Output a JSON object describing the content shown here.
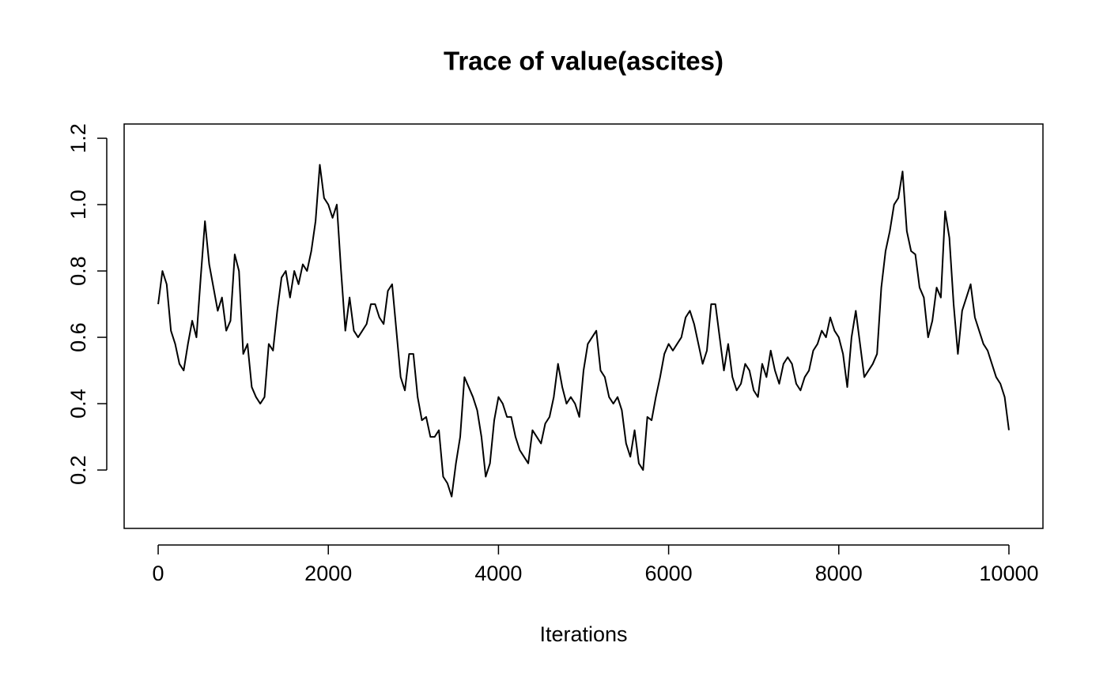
{
  "chart_data": {
    "type": "line",
    "title": "Trace of value(ascites)",
    "xlabel": "Iterations",
    "color": "#000000",
    "xlim": [
      -400,
      10400
    ],
    "ylim": [
      0.024,
      1.243
    ],
    "xticks": [
      0,
      2000,
      4000,
      6000,
      8000,
      10000
    ],
    "yticks": [
      0.2,
      0.4,
      0.6,
      0.8,
      {
        "value": 1,
        "label": "1.0"
      },
      1.2
    ],
    "x": [
      0,
      50,
      100,
      150,
      200,
      250,
      300,
      350,
      400,
      450,
      500,
      550,
      600,
      650,
      700,
      750,
      800,
      850,
      900,
      950,
      1000,
      1050,
      1100,
      1150,
      1200,
      1250,
      1300,
      1350,
      1400,
      1450,
      1500,
      1550,
      1600,
      1650,
      1700,
      1750,
      1800,
      1850,
      1900,
      1950,
      2000,
      2050,
      2100,
      2150,
      2200,
      2250,
      2300,
      2350,
      2400,
      2450,
      2500,
      2550,
      2600,
      2650,
      2700,
      2750,
      2800,
      2850,
      2900,
      2950,
      3000,
      3050,
      3100,
      3150,
      3200,
      3250,
      3300,
      3350,
      3400,
      3450,
      3500,
      3550,
      3600,
      3650,
      3700,
      3750,
      3800,
      3850,
      3900,
      3950,
      4000,
      4050,
      4100,
      4150,
      4200,
      4250,
      4300,
      4350,
      4400,
      4450,
      4500,
      4550,
      4600,
      4650,
      4700,
      4750,
      4800,
      4850,
      4900,
      4950,
      5000,
      5050,
      5100,
      5150,
      5200,
      5250,
      5300,
      5350,
      5400,
      5450,
      5500,
      5550,
      5600,
      5650,
      5700,
      5750,
      5800,
      5850,
      5900,
      5950,
      6000,
      6050,
      6100,
      6150,
      6200,
      6250,
      6300,
      6350,
      6400,
      6450,
      6500,
      6550,
      6600,
      6650,
      6700,
      6750,
      6800,
      6850,
      6900,
      6950,
      7000,
      7050,
      7100,
      7150,
      7200,
      7250,
      7300,
      7350,
      7400,
      7450,
      7500,
      7550,
      7600,
      7650,
      7700,
      7750,
      7800,
      7850,
      7900,
      7950,
      8000,
      8050,
      8100,
      8150,
      8200,
      8250,
      8300,
      8350,
      8400,
      8450,
      8500,
      8550,
      8600,
      8650,
      8700,
      8750,
      8800,
      8850,
      8900,
      8950,
      9000,
      9050,
      9100,
      9150,
      9200,
      9250,
      9300,
      9350,
      9400,
      9450,
      9500,
      9550,
      9600,
      9650,
      9700,
      9750,
      9800,
      9850,
      9900,
      9950,
      10000
    ],
    "values": [
      0.7,
      0.8,
      0.76,
      0.62,
      0.58,
      0.52,
      0.5,
      0.58,
      0.65,
      0.6,
      0.78,
      0.95,
      0.82,
      0.75,
      0.68,
      0.72,
      0.62,
      0.65,
      0.85,
      0.8,
      0.55,
      0.58,
      0.45,
      0.42,
      0.4,
      0.42,
      0.58,
      0.56,
      0.68,
      0.78,
      0.8,
      0.72,
      0.8,
      0.76,
      0.82,
      0.8,
      0.86,
      0.95,
      1.12,
      1.02,
      1.0,
      0.96,
      1.0,
      0.8,
      0.62,
      0.72,
      0.62,
      0.6,
      0.62,
      0.64,
      0.7,
      0.7,
      0.66,
      0.64,
      0.74,
      0.76,
      0.62,
      0.48,
      0.44,
      0.55,
      0.55,
      0.42,
      0.35,
      0.36,
      0.3,
      0.3,
      0.32,
      0.18,
      0.16,
      0.12,
      0.22,
      0.3,
      0.48,
      0.45,
      0.42,
      0.38,
      0.3,
      0.18,
      0.22,
      0.35,
      0.42,
      0.4,
      0.36,
      0.36,
      0.3,
      0.26,
      0.24,
      0.22,
      0.32,
      0.3,
      0.28,
      0.34,
      0.36,
      0.42,
      0.52,
      0.45,
      0.4,
      0.42,
      0.4,
      0.36,
      0.5,
      0.58,
      0.6,
      0.62,
      0.5,
      0.48,
      0.42,
      0.4,
      0.42,
      0.38,
      0.28,
      0.24,
      0.32,
      0.22,
      0.2,
      0.36,
      0.35,
      0.42,
      0.48,
      0.55,
      0.58,
      0.56,
      0.58,
      0.6,
      0.66,
      0.68,
      0.64,
      0.58,
      0.52,
      0.56,
      0.7,
      0.7,
      0.6,
      0.5,
      0.58,
      0.48,
      0.44,
      0.46,
      0.52,
      0.5,
      0.44,
      0.42,
      0.52,
      0.48,
      0.56,
      0.5,
      0.46,
      0.52,
      0.54,
      0.52,
      0.46,
      0.44,
      0.48,
      0.5,
      0.56,
      0.58,
      0.62,
      0.6,
      0.66,
      0.62,
      0.6,
      0.55,
      0.45,
      0.6,
      0.68,
      0.58,
      0.48,
      0.5,
      0.52,
      0.55,
      0.75,
      0.86,
      0.92,
      1.0,
      1.02,
      1.1,
      0.92,
      0.86,
      0.85,
      0.75,
      0.72,
      0.6,
      0.65,
      0.75,
      0.72,
      0.98,
      0.9,
      0.7,
      0.55,
      0.68,
      0.72,
      0.76,
      0.66,
      0.62,
      0.58,
      0.56,
      0.52,
      0.48,
      0.46,
      0.42,
      0.32
    ]
  }
}
